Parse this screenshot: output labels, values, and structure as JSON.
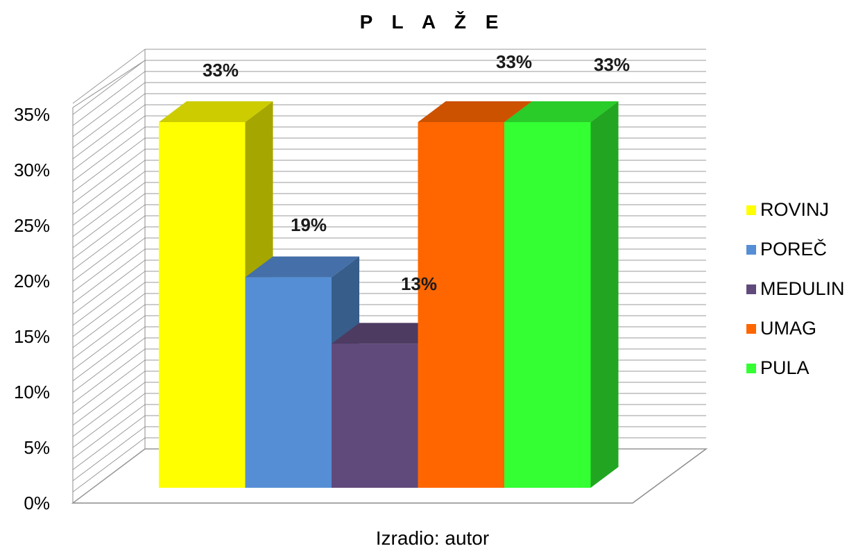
{
  "title": "P L A Ž E",
  "caption": "Izradio: autor",
  "chart_data": {
    "type": "bar",
    "three_d": true,
    "title": "P L A Ž E",
    "xlabel": "",
    "ylabel": "",
    "categories": [
      "ROVINJ",
      "POREČ",
      "MEDULIN",
      "UMAG",
      "PULA"
    ],
    "values": [
      33,
      19,
      13,
      33,
      33
    ],
    "unit": "%",
    "data_labels": [
      "33%",
      "19%",
      "13%",
      "33%",
      "33%"
    ],
    "ylim": [
      0,
      35
    ],
    "yticks": [
      0,
      5,
      10,
      15,
      20,
      25,
      30,
      35
    ],
    "ytick_labels": [
      "0%",
      "5%",
      "10%",
      "15%",
      "20%",
      "25%",
      "30%",
      "35%"
    ],
    "colors": [
      "#ffff00",
      "#558ed5",
      "#604a7b",
      "#ff6600",
      "#33ff33"
    ],
    "side_colors": [
      "#a6a600",
      "#375d8a",
      "#3e3050",
      "#a64200",
      "#22a622"
    ],
    "top_colors": [
      "#cccc00",
      "#446fa8",
      "#4d3b62",
      "#cc5200",
      "#29cc29"
    ],
    "grid": true,
    "legend": "right"
  }
}
